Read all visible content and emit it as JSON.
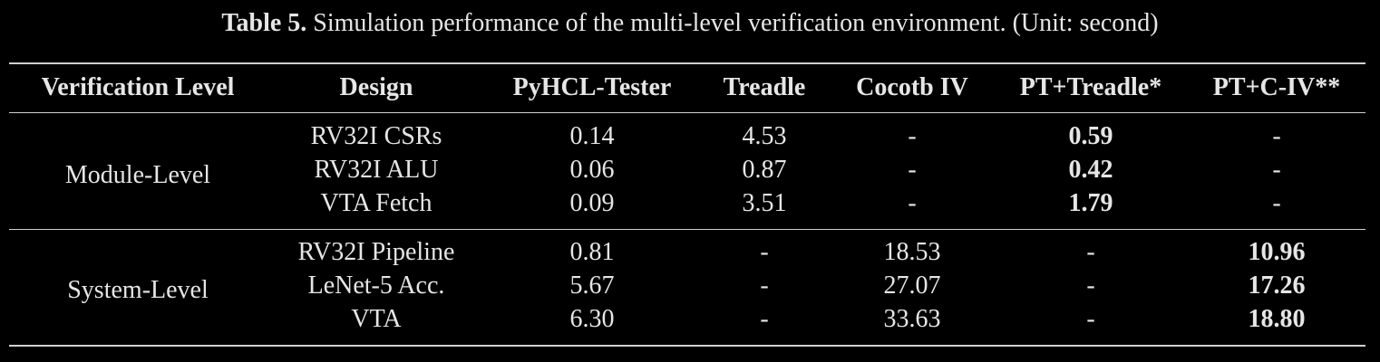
{
  "caption": {
    "label": "Table 5.",
    "text": "Simulation performance of the multi-level verification environment. (Unit: second)"
  },
  "columns": [
    "Verification Level",
    "Design",
    "PyHCL-Tester",
    "Treadle",
    "Cocotb IV",
    "PT+Treadle*",
    "PT+C-IV**"
  ],
  "groups": [
    {
      "level": "Module-Level",
      "rows": [
        {
          "design": "RV32I CSRs",
          "pyhcl": "0.14",
          "treadle": "4.53",
          "cocotb": "-",
          "pt_treadle": "0.59",
          "pt_civ": "-"
        },
        {
          "design": "RV32I ALU",
          "pyhcl": "0.06",
          "treadle": "0.87",
          "cocotb": "-",
          "pt_treadle": "0.42",
          "pt_civ": "-"
        },
        {
          "design": "VTA Fetch",
          "pyhcl": "0.09",
          "treadle": "3.51",
          "cocotb": "-",
          "pt_treadle": "1.79",
          "pt_civ": "-"
        }
      ]
    },
    {
      "level": "System-Level",
      "rows": [
        {
          "design": "RV32I Pipeline",
          "pyhcl": "0.81",
          "treadle": "-",
          "cocotb": "18.53",
          "pt_treadle": "-",
          "pt_civ": "10.96"
        },
        {
          "design": "LeNet-5 Acc.",
          "pyhcl": "5.67",
          "treadle": "-",
          "cocotb": "27.07",
          "pt_treadle": "-",
          "pt_civ": "17.26"
        },
        {
          "design": "VTA",
          "pyhcl": "6.30",
          "treadle": "-",
          "cocotb": "33.63",
          "pt_treadle": "-",
          "pt_civ": "18.80"
        }
      ]
    }
  ]
}
